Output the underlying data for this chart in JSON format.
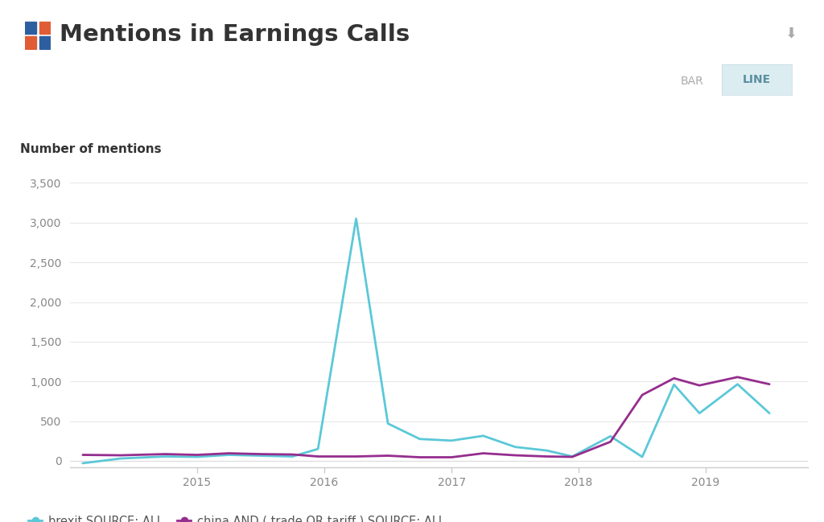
{
  "title": "Mentions in Earnings Calls",
  "ylabel": "Number of mentions",
  "background_color": "#ffffff",
  "brexit_color": "#5bc8d8",
  "china_color": "#952d8e",
  "brexit_label": "brexit SOURCE: ALL",
  "china_label": "china AND ( trade OR tariff ) SOURCE: ALL",
  "bar_label": "BAR",
  "line_label": "LINE",
  "yticks": [
    0,
    500,
    1000,
    1500,
    2000,
    2500,
    3000,
    3500
  ],
  "xtick_labels": [
    "2015",
    "2016",
    "2017",
    "2018",
    "2019"
  ],
  "xtick_positions": [
    2015,
    2016,
    2017,
    2018,
    2019
  ],
  "xlim": [
    2014.0,
    2019.8
  ],
  "ylim": [
    -80,
    3700
  ],
  "icon_colors": [
    "#2d5fa0",
    "#e05c35",
    "#e05c35",
    "#2d5fa0"
  ],
  "brexit_x": [
    2014.1,
    2014.4,
    2014.75,
    2015.0,
    2015.25,
    2015.5,
    2015.75,
    2015.95,
    2016.25,
    2016.5,
    2016.75,
    2017.0,
    2017.25,
    2017.5,
    2017.75,
    2017.95,
    2018.25,
    2018.5,
    2018.75,
    2018.95,
    2019.25,
    2019.5
  ],
  "brexit_y": [
    -30,
    30,
    55,
    50,
    75,
    65,
    55,
    150,
    3050,
    470,
    275,
    255,
    315,
    175,
    130,
    55,
    310,
    50,
    960,
    600,
    965,
    600
  ],
  "china_x": [
    2014.1,
    2014.4,
    2014.75,
    2015.0,
    2015.25,
    2015.5,
    2015.75,
    2015.95,
    2016.25,
    2016.5,
    2016.75,
    2017.0,
    2017.25,
    2017.5,
    2017.75,
    2017.95,
    2018.25,
    2018.5,
    2018.75,
    2018.95,
    2019.25,
    2019.5
  ],
  "china_y": [
    75,
    70,
    85,
    75,
    95,
    85,
    80,
    55,
    55,
    65,
    45,
    45,
    95,
    70,
    55,
    50,
    240,
    830,
    1040,
    950,
    1055,
    965
  ]
}
